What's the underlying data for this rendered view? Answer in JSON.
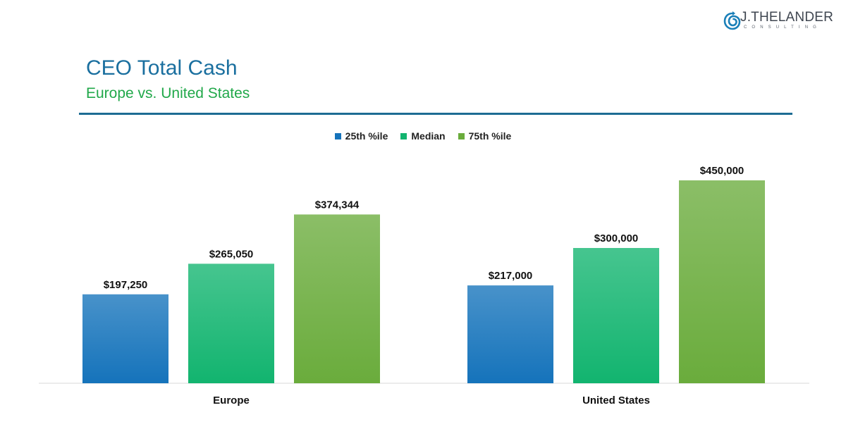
{
  "logo": {
    "name": "J.THELANDER",
    "sub": "CONSULTING"
  },
  "header": {
    "title": "CEO Total Cash",
    "subtitle": "Europe vs. United States"
  },
  "colors": {
    "title": "#1a6f9f",
    "subtitle": "#21a84a",
    "rule": "#1d6c93"
  },
  "chart_data": {
    "type": "bar",
    "title": "CEO Total Cash",
    "subtitle": "Europe vs. United States",
    "categories": [
      "Europe",
      "United States"
    ],
    "series": [
      {
        "name": "25th %ile",
        "values": [
          197250,
          217000
        ],
        "labels": [
          "$197,250",
          "$217,000"
        ],
        "color": "#1573bb"
      },
      {
        "name": "Median",
        "values": [
          265050,
          300000
        ],
        "labels": [
          "$265,050",
          "$300,000"
        ],
        "color": "#12b46f"
      },
      {
        "name": "75th %ile",
        "values": [
          374344,
          450000
        ],
        "labels": [
          "$374,344",
          "$450,000"
        ],
        "color": "#6aac3c"
      }
    ],
    "legend": "top-center",
    "grid": false,
    "ylim": [
      0,
      450000
    ]
  }
}
